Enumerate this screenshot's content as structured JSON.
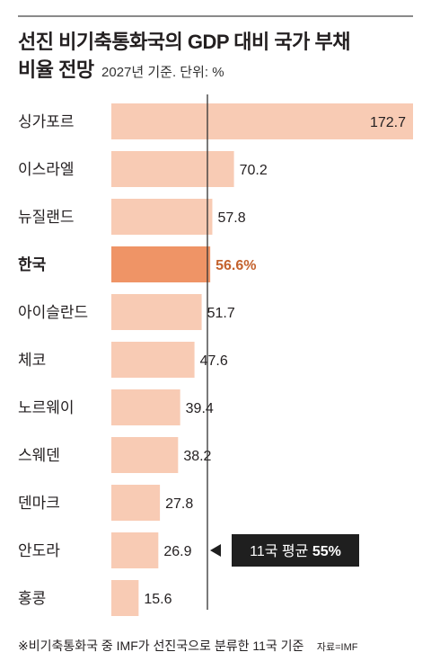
{
  "header": {
    "title_line1": "선진 비기축통화국의 GDP 대비 국가 부채",
    "title_line2_main": "비율 전망",
    "title_line2_sub": "2027년 기준. 단위: %"
  },
  "chart_data": {
    "type": "bar",
    "orientation": "horizontal",
    "categories": [
      "싱가포르",
      "이스라엘",
      "뉴질랜드",
      "한국",
      "아이슬란드",
      "체코",
      "노르웨이",
      "스웨덴",
      "덴마크",
      "안도라",
      "홍콩"
    ],
    "values": [
      172.7,
      70.2,
      57.8,
      56.6,
      51.7,
      47.6,
      39.4,
      38.2,
      27.8,
      26.9,
      15.6
    ],
    "value_labels": [
      "172.7",
      "70.2",
      "57.8",
      "56.6%",
      "51.7",
      "47.6",
      "39.4",
      "38.2",
      "27.8",
      "26.9",
      "15.6"
    ],
    "highlight": "한국",
    "xlim": [
      0,
      172.7
    ],
    "reference_line": {
      "value": 55,
      "label_prefix": "11국 평균 ",
      "label_value": "55%"
    },
    "colors": {
      "bar": "#f8cbb4",
      "highlight_bar": "#ef9466",
      "highlight_text": "#c4622d",
      "avg_line": "#333333",
      "avg_box": "#1f1f1f"
    },
    "grid": false,
    "legend": "none"
  },
  "footer": {
    "note": "※비기축통화국 중 IMF가 선진국으로 분류한 11국 기준",
    "source": "자료=IMF"
  }
}
